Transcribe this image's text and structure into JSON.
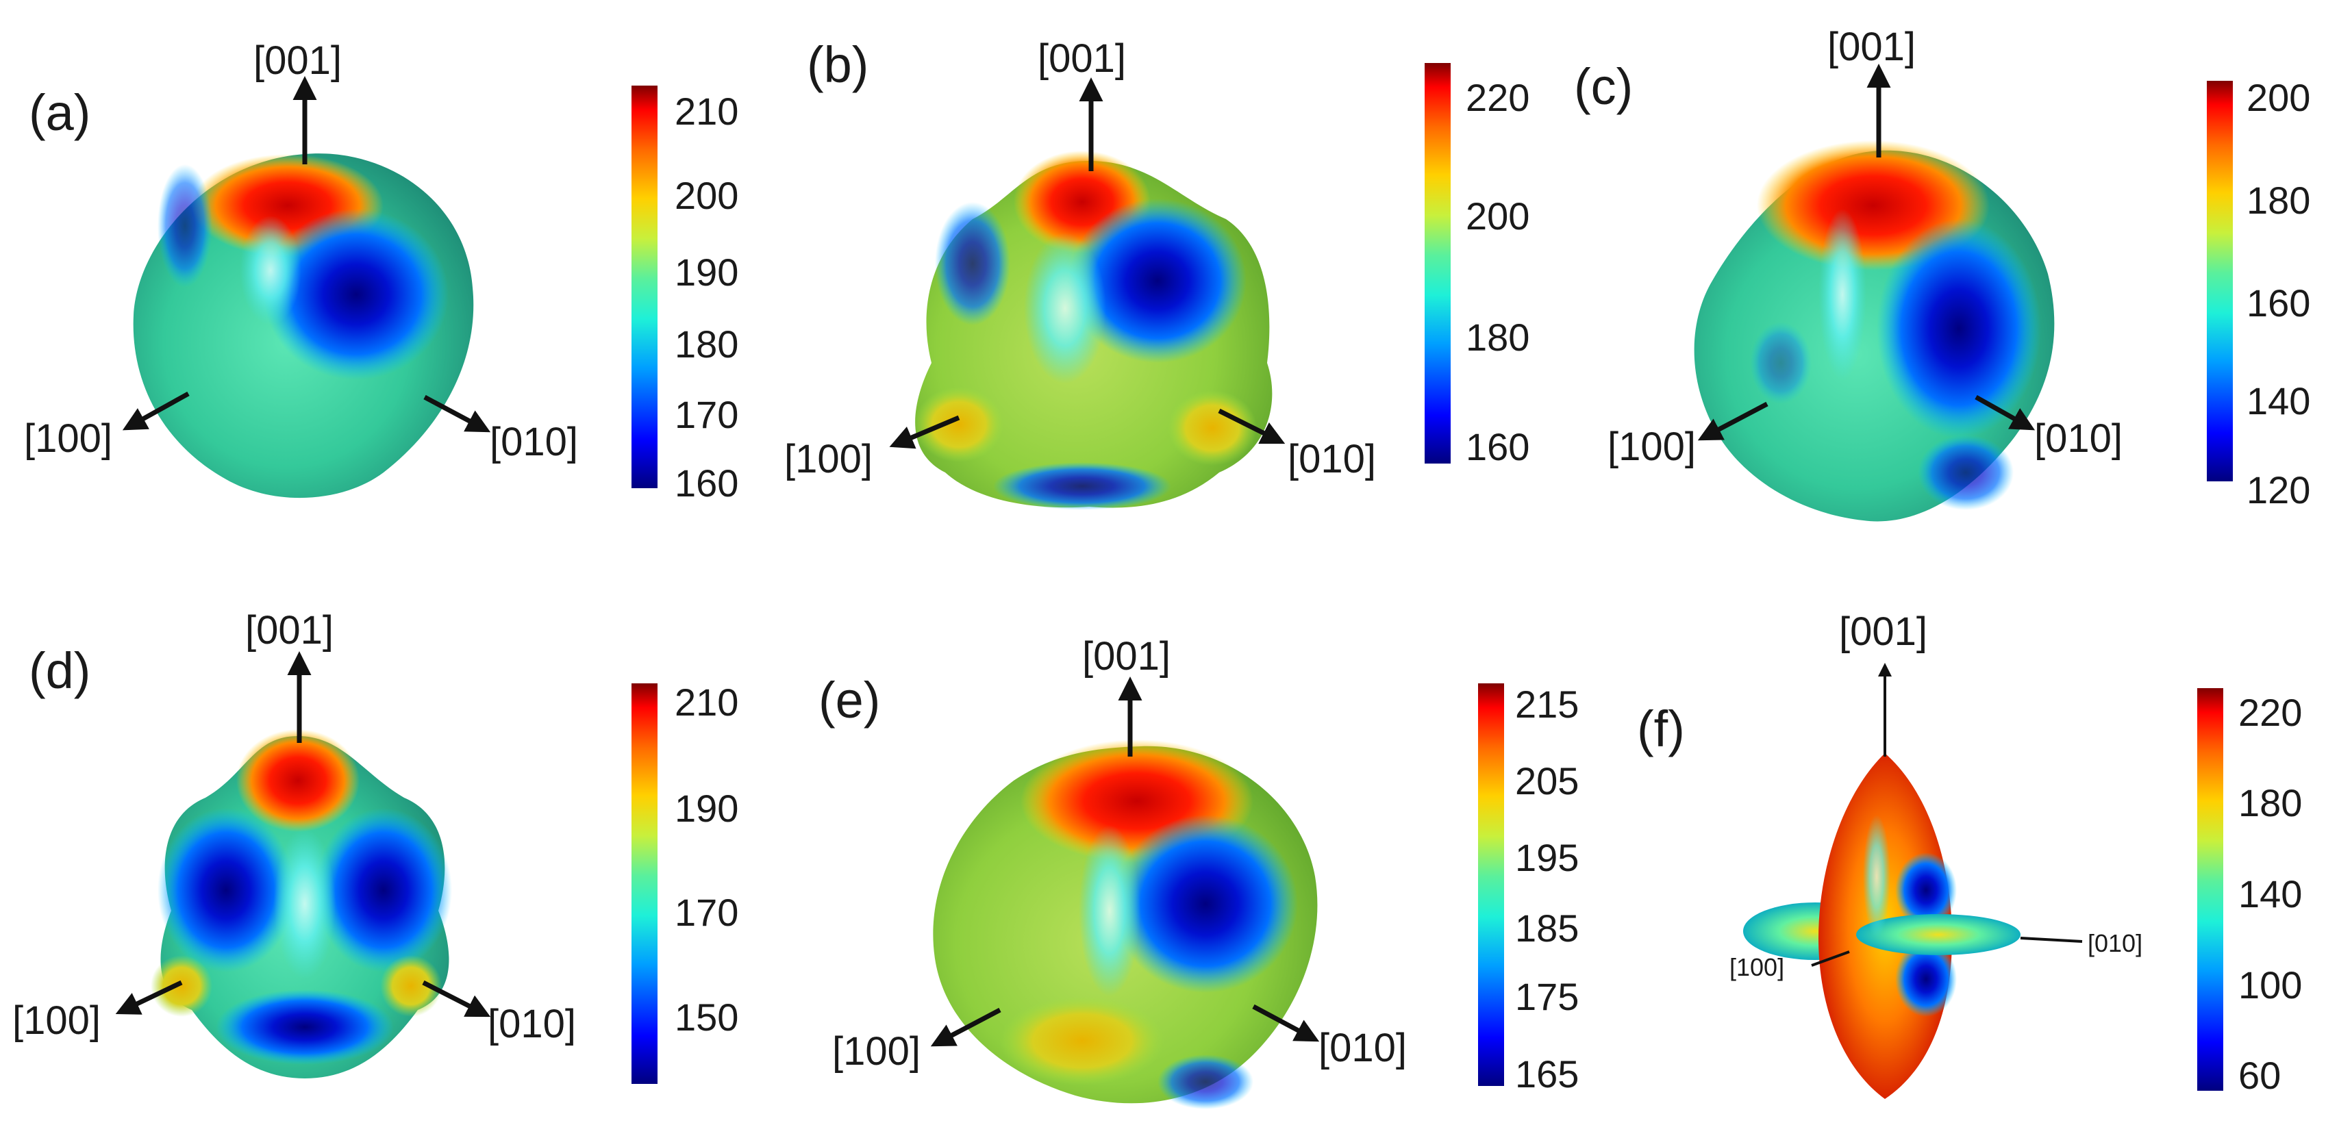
{
  "colormap_stops": [
    "#00007f",
    "#0000ff",
    "#00a0ff",
    "#1ef0d8",
    "#5af09c",
    "#c8f03c",
    "#ffd000",
    "#ff6a00",
    "#ff0000",
    "#7f0000"
  ],
  "panels": [
    {
      "id": "a",
      "label": "(a)",
      "axes": {
        "top": "[001]",
        "left": "[100]",
        "right": "[010]"
      },
      "colorbar_ticks": [
        "210",
        "200",
        "190",
        "180",
        "170",
        "160"
      ],
      "shape": "rounded-cube"
    },
    {
      "id": "b",
      "label": "(b)",
      "axes": {
        "top": "[001]",
        "left": "[100]",
        "right": "[010]"
      },
      "colorbar_ticks": [
        "220",
        "200",
        "180",
        "160"
      ],
      "shape": "lobed-cube"
    },
    {
      "id": "c",
      "label": "(c)",
      "axes": {
        "top": "[001]",
        "left": "[100]",
        "right": "[010]"
      },
      "colorbar_ticks": [
        "200",
        "180",
        "160",
        "140",
        "120"
      ],
      "shape": "rounded-cube"
    },
    {
      "id": "d",
      "label": "(d)",
      "axes": {
        "top": "[001]",
        "left": "[100]",
        "right": "[010]"
      },
      "colorbar_ticks": [
        "210",
        "190",
        "170",
        "150"
      ],
      "shape": "lobed-cube"
    },
    {
      "id": "e",
      "label": "(e)",
      "axes": {
        "top": "[001]",
        "left": "[100]",
        "right": "[010]"
      },
      "colorbar_ticks": [
        "215",
        "205",
        "195",
        "185",
        "175",
        "165"
      ],
      "shape": "rounded-cube"
    },
    {
      "id": "f",
      "label": "(f)",
      "axes": {
        "top": "[001]",
        "left": "[100]",
        "right": "[010]"
      },
      "colorbar_ticks": [
        "220",
        "180",
        "140",
        "100",
        "60"
      ],
      "shape": "spindle-cross"
    }
  ]
}
